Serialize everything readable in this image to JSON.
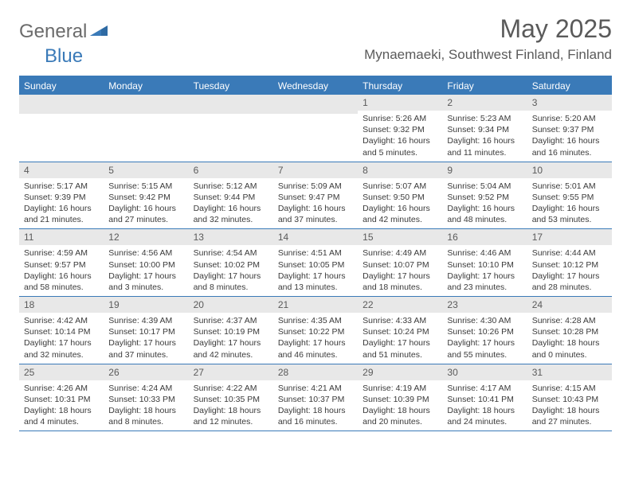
{
  "brand": {
    "part1": "General",
    "part2": "Blue"
  },
  "title": "May 2025",
  "location": "Mynaemaeki, Southwest Finland, Finland",
  "colors": {
    "accent": "#3a7ab8",
    "header_bg": "#3a7ab8",
    "daynum_bg": "#e8e8e8",
    "text_gray": "#5a5a5a",
    "body_text": "#3a3a3a"
  },
  "weekdays": [
    "Sunday",
    "Monday",
    "Tuesday",
    "Wednesday",
    "Thursday",
    "Friday",
    "Saturday"
  ],
  "weeks": [
    [
      null,
      null,
      null,
      null,
      {
        "d": "1",
        "sr": "5:26 AM",
        "ss": "9:32 PM",
        "dl": "16 hours and 5 minutes."
      },
      {
        "d": "2",
        "sr": "5:23 AM",
        "ss": "9:34 PM",
        "dl": "16 hours and 11 minutes."
      },
      {
        "d": "3",
        "sr": "5:20 AM",
        "ss": "9:37 PM",
        "dl": "16 hours and 16 minutes."
      }
    ],
    [
      {
        "d": "4",
        "sr": "5:17 AM",
        "ss": "9:39 PM",
        "dl": "16 hours and 21 minutes."
      },
      {
        "d": "5",
        "sr": "5:15 AM",
        "ss": "9:42 PM",
        "dl": "16 hours and 27 minutes."
      },
      {
        "d": "6",
        "sr": "5:12 AM",
        "ss": "9:44 PM",
        "dl": "16 hours and 32 minutes."
      },
      {
        "d": "7",
        "sr": "5:09 AM",
        "ss": "9:47 PM",
        "dl": "16 hours and 37 minutes."
      },
      {
        "d": "8",
        "sr": "5:07 AM",
        "ss": "9:50 PM",
        "dl": "16 hours and 42 minutes."
      },
      {
        "d": "9",
        "sr": "5:04 AM",
        "ss": "9:52 PM",
        "dl": "16 hours and 48 minutes."
      },
      {
        "d": "10",
        "sr": "5:01 AM",
        "ss": "9:55 PM",
        "dl": "16 hours and 53 minutes."
      }
    ],
    [
      {
        "d": "11",
        "sr": "4:59 AM",
        "ss": "9:57 PM",
        "dl": "16 hours and 58 minutes."
      },
      {
        "d": "12",
        "sr": "4:56 AM",
        "ss": "10:00 PM",
        "dl": "17 hours and 3 minutes."
      },
      {
        "d": "13",
        "sr": "4:54 AM",
        "ss": "10:02 PM",
        "dl": "17 hours and 8 minutes."
      },
      {
        "d": "14",
        "sr": "4:51 AM",
        "ss": "10:05 PM",
        "dl": "17 hours and 13 minutes."
      },
      {
        "d": "15",
        "sr": "4:49 AM",
        "ss": "10:07 PM",
        "dl": "17 hours and 18 minutes."
      },
      {
        "d": "16",
        "sr": "4:46 AM",
        "ss": "10:10 PM",
        "dl": "17 hours and 23 minutes."
      },
      {
        "d": "17",
        "sr": "4:44 AM",
        "ss": "10:12 PM",
        "dl": "17 hours and 28 minutes."
      }
    ],
    [
      {
        "d": "18",
        "sr": "4:42 AM",
        "ss": "10:14 PM",
        "dl": "17 hours and 32 minutes."
      },
      {
        "d": "19",
        "sr": "4:39 AM",
        "ss": "10:17 PM",
        "dl": "17 hours and 37 minutes."
      },
      {
        "d": "20",
        "sr": "4:37 AM",
        "ss": "10:19 PM",
        "dl": "17 hours and 42 minutes."
      },
      {
        "d": "21",
        "sr": "4:35 AM",
        "ss": "10:22 PM",
        "dl": "17 hours and 46 minutes."
      },
      {
        "d": "22",
        "sr": "4:33 AM",
        "ss": "10:24 PM",
        "dl": "17 hours and 51 minutes."
      },
      {
        "d": "23",
        "sr": "4:30 AM",
        "ss": "10:26 PM",
        "dl": "17 hours and 55 minutes."
      },
      {
        "d": "24",
        "sr": "4:28 AM",
        "ss": "10:28 PM",
        "dl": "18 hours and 0 minutes."
      }
    ],
    [
      {
        "d": "25",
        "sr": "4:26 AM",
        "ss": "10:31 PM",
        "dl": "18 hours and 4 minutes."
      },
      {
        "d": "26",
        "sr": "4:24 AM",
        "ss": "10:33 PM",
        "dl": "18 hours and 8 minutes."
      },
      {
        "d": "27",
        "sr": "4:22 AM",
        "ss": "10:35 PM",
        "dl": "18 hours and 12 minutes."
      },
      {
        "d": "28",
        "sr": "4:21 AM",
        "ss": "10:37 PM",
        "dl": "18 hours and 16 minutes."
      },
      {
        "d": "29",
        "sr": "4:19 AM",
        "ss": "10:39 PM",
        "dl": "18 hours and 20 minutes."
      },
      {
        "d": "30",
        "sr": "4:17 AM",
        "ss": "10:41 PM",
        "dl": "18 hours and 24 minutes."
      },
      {
        "d": "31",
        "sr": "4:15 AM",
        "ss": "10:43 PM",
        "dl": "18 hours and 27 minutes."
      }
    ]
  ],
  "labels": {
    "sunrise": "Sunrise:",
    "sunset": "Sunset:",
    "daylight": "Daylight:"
  }
}
